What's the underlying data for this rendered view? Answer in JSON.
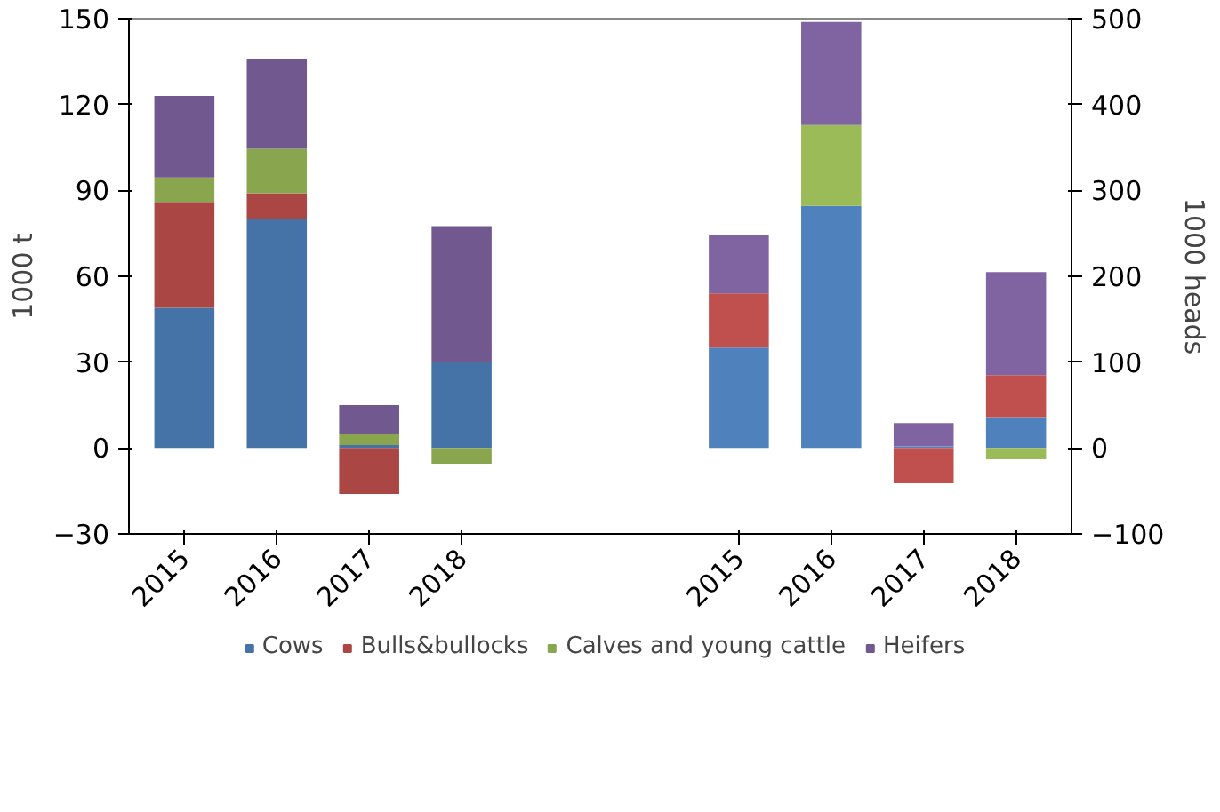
{
  "chart_data": {
    "type": "bar",
    "stacked": true,
    "ylabel": "1000 t",
    "y2label": "1000 heads",
    "categories": [
      "2015",
      "2016",
      "2017",
      "2018",
      null,
      null,
      "2015",
      "2016",
      "2017",
      "2018"
    ],
    "ylim": [
      -30,
      150
    ],
    "yticks": [
      -30,
      0,
      30,
      60,
      90,
      120,
      150
    ],
    "y2lim": [
      -100,
      500
    ],
    "y2ticks": [
      -100,
      0,
      100,
      200,
      300,
      400,
      500
    ],
    "legend": "bottom",
    "grid": false,
    "series": [
      {
        "name": "Cows",
        "color": "#4572a7",
        "values": [
          49,
          80,
          1,
          30,
          null,
          null,
          null,
          null,
          null,
          null
        ]
      },
      {
        "name": "Bulls&bullocks",
        "color": "#aa4643",
        "values": [
          37,
          9,
          -16,
          0,
          null,
          null,
          null,
          null,
          null,
          null
        ]
      },
      {
        "name": "Calves and young cattle",
        "color": "#89a54e",
        "values": [
          8.5,
          15.5,
          4,
          -5.5,
          null,
          null,
          null,
          null,
          null,
          null
        ]
      },
      {
        "name": "Heifers",
        "color": "#71588f",
        "values": [
          28.5,
          31.5,
          10,
          47.5,
          null,
          null,
          null,
          null,
          null,
          null
        ]
      },
      {
        "color": "#4f81bd",
        "axis": "y2",
        "values": [
          null,
          null,
          null,
          null,
          null,
          null,
          117,
          282,
          2,
          36
        ]
      },
      {
        "color": "#c0504d",
        "axis": "y2",
        "values": [
          null,
          null,
          null,
          null,
          null,
          null,
          63,
          0,
          -41,
          49
        ]
      },
      {
        "color": "#9bbb59",
        "axis": "y2",
        "values": [
          null,
          null,
          null,
          null,
          null,
          null,
          0,
          94,
          0,
          -13
        ]
      },
      {
        "color": "#8064a2",
        "axis": "y2",
        "values": [
          null,
          null,
          null,
          null,
          null,
          null,
          68,
          120,
          27,
          120
        ]
      }
    ]
  }
}
